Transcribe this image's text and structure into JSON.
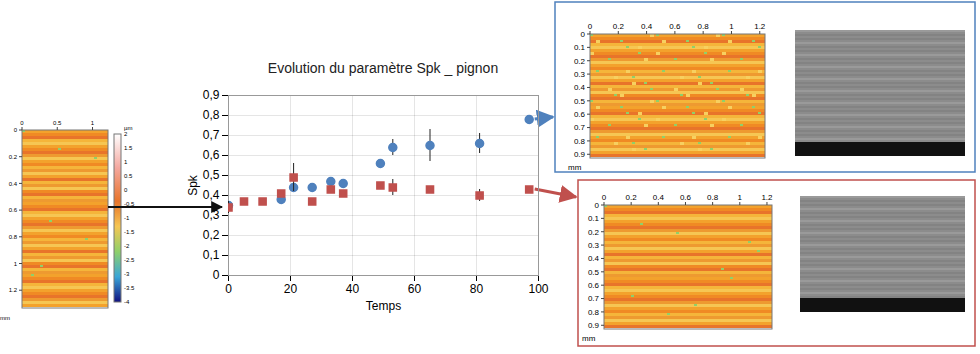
{
  "chart_data": {
    "type": "scatter",
    "title": "Evolution du paramètre Spk _ pignon",
    "x_label": "Temps",
    "y_label": "Spk",
    "xlim": [
      0,
      100
    ],
    "xticks": [
      0,
      20,
      40,
      60,
      80,
      100
    ],
    "ylim": [
      0,
      0.9
    ],
    "yticks": [
      0,
      {
        "value": 0.1,
        "label": "0,1"
      },
      {
        "value": 0.2,
        "label": "0,2"
      },
      {
        "value": 0.3,
        "label": "0,3"
      },
      {
        "value": 0.4,
        "label": "0,4"
      },
      {
        "value": 0.5,
        "label": "0,5"
      },
      {
        "value": 0.6,
        "label": "0,6"
      },
      {
        "value": 0.7,
        "label": "0,7"
      },
      {
        "value": 0.8,
        "label": "0,8"
      },
      {
        "value": 0.9,
        "label": "0,9"
      }
    ],
    "grid": true,
    "series": [
      {
        "color": "#4f81bd",
        "marker": "circle",
        "x": [
          0,
          17,
          21,
          27,
          33,
          37,
          49,
          53,
          65,
          81,
          97
        ],
        "values": [
          0.35,
          0.38,
          0.44,
          0.44,
          0.47,
          0.46,
          0.56,
          0.64,
          0.65,
          0.66,
          0.78
        ],
        "errors": [
          null,
          null,
          0.02,
          null,
          null,
          null,
          null,
          0.04,
          0.08,
          0.05,
          null
        ]
      },
      {
        "color": "#c0504d",
        "marker": "square",
        "x": [
          0,
          5,
          11,
          17,
          21,
          27,
          33,
          37,
          49,
          53,
          65,
          81,
          97
        ],
        "values": [
          0.34,
          0.37,
          0.37,
          0.41,
          0.49,
          0.37,
          0.43,
          0.41,
          0.45,
          0.44,
          0.43,
          0.4,
          0.43
        ],
        "errors": [
          0.03,
          null,
          null,
          null,
          0.07,
          null,
          null,
          null,
          null,
          0.04,
          null,
          0.03,
          null
        ]
      }
    ]
  },
  "insets": [
    {
      "x_ticks": [
        0,
        0.5,
        1
      ],
      "y_ticks": [
        0,
        0.2,
        0.4,
        0.6,
        0.8,
        1,
        1.2
      ],
      "unit": "mm",
      "colorbar": {
        "label": "µm",
        "ticks": [
          2,
          1.5,
          1,
          0.5,
          0,
          -0.5,
          -1,
          -1.5,
          -2,
          -2.5,
          -3,
          -3.5,
          -4
        ]
      }
    },
    {
      "x_ticks": [
        0,
        0.2,
        0.4,
        0.6,
        0.8,
        1,
        1.2
      ],
      "y_ticks": [
        0,
        0.1,
        0.2,
        0.3,
        0.4,
        0.5,
        0.6,
        0.7,
        0.8,
        0.9
      ],
      "unit": "mm"
    },
    {
      "x_ticks": [
        0,
        0.2,
        0.4,
        0.6,
        0.8,
        1,
        1.2
      ],
      "y_ticks": [
        0,
        0.1,
        0.2,
        0.3,
        0.4,
        0.5,
        0.6,
        0.7,
        0.8,
        0.9
      ],
      "unit": "mm"
    }
  ]
}
